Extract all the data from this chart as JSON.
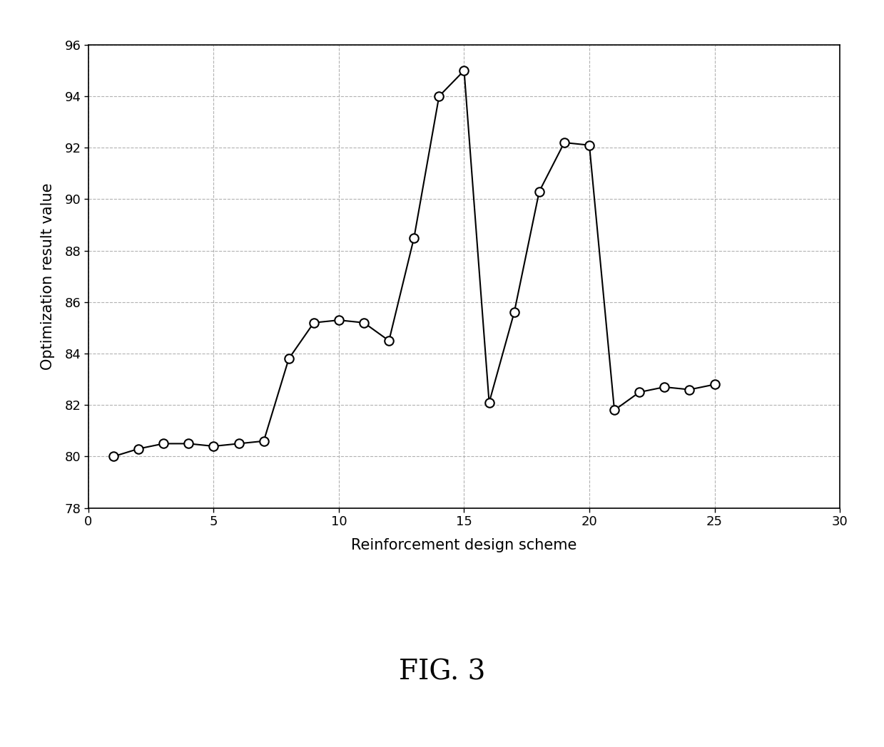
{
  "x": [
    1,
    2,
    3,
    4,
    5,
    6,
    7,
    8,
    9,
    10,
    11,
    12,
    13,
    14,
    15,
    16,
    17,
    18,
    19,
    20,
    21,
    22,
    23,
    24,
    25
  ],
  "y": [
    80.0,
    80.3,
    80.5,
    80.5,
    80.4,
    80.5,
    80.6,
    83.8,
    85.2,
    85.3,
    85.2,
    84.5,
    88.5,
    94.0,
    95.0,
    82.1,
    85.6,
    90.3,
    92.2,
    92.1,
    81.8,
    82.5,
    82.7,
    82.6,
    82.8
  ],
  "xlabel": "Reinforcement design scheme",
  "ylabel": "Optimization result value",
  "xlim": [
    0,
    30
  ],
  "ylim": [
    78,
    96
  ],
  "xticks": [
    0,
    5,
    10,
    15,
    20,
    25,
    30
  ],
  "yticks": [
    78,
    80,
    82,
    84,
    86,
    88,
    90,
    92,
    94,
    96
  ],
  "fig_caption": "FIG. 3",
  "line_color": "#000000",
  "marker_color": "#ffffff",
  "marker_edge_color": "#000000",
  "grid_color": "#aaaaaa",
  "background_color": "#ffffff",
  "figsize": [
    12.39,
    10.48
  ],
  "dpi": 100,
  "xlabel_fontsize": 15,
  "ylabel_fontsize": 15,
  "tick_fontsize": 13,
  "caption_fontsize": 28,
  "linewidth": 1.5,
  "markersize": 9,
  "markeredgewidth": 1.5
}
